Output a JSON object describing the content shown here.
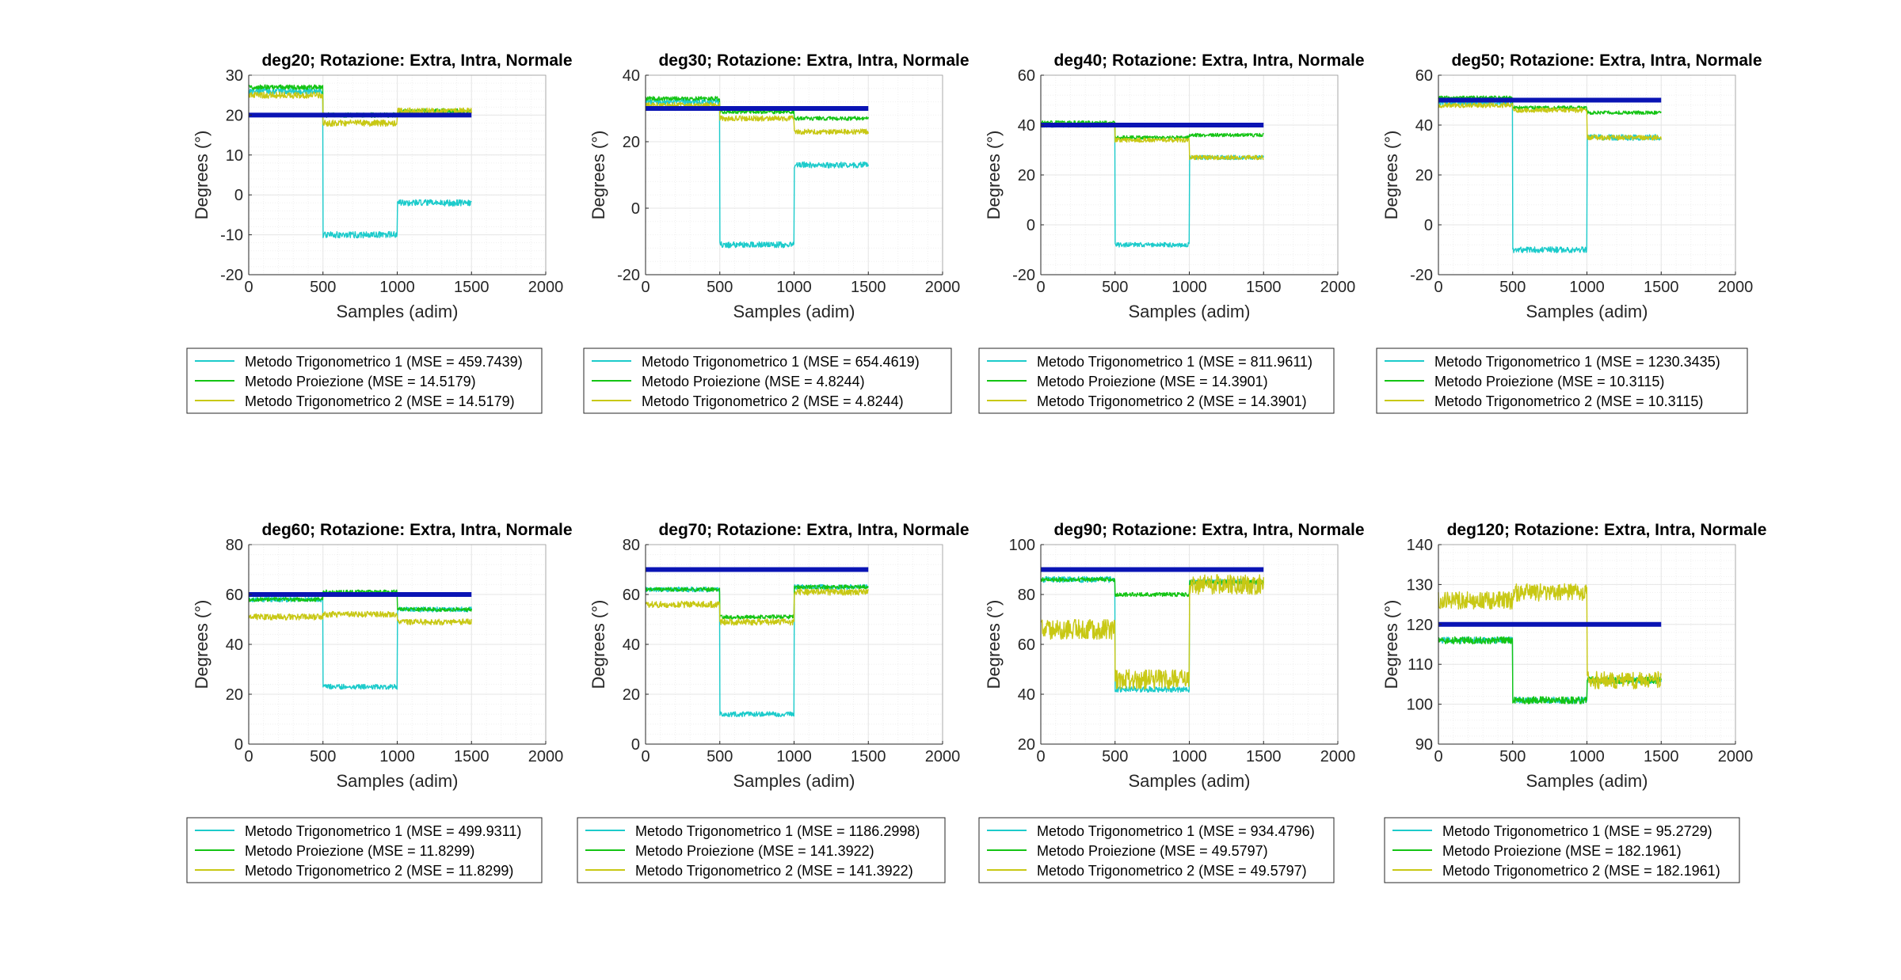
{
  "figure": {
    "xlabel": "Samples (adim)",
    "ylabel": "Degrees (°)",
    "colors": {
      "reference": "#0a14b4",
      "trig1": "#1ccbcb",
      "proiezione": "#14c414",
      "trig2": "#c8c814",
      "grid": "#e6e6e6",
      "axis": "#262626"
    }
  },
  "chart_data": [
    {
      "type": "line",
      "title": "deg20; Rotazione: Extra, Intra, Normale",
      "xlabel": "Samples (adim)",
      "ylabel": "Degrees (°)",
      "xlim": [
        0,
        2000
      ],
      "ylim": [
        -20,
        30
      ],
      "xticks": [
        0,
        500,
        1000,
        1500,
        2000
      ],
      "yticks": [
        -20,
        -10,
        0,
        10,
        20,
        30
      ],
      "reference": 20,
      "series": [
        {
          "name": "Metodo Trigonometrico 1 (MSE = 459.7439)",
          "key": "trig1",
          "levels": [
            26,
            -10,
            -2
          ],
          "noise": 0.8
        },
        {
          "name": "Metodo Proiezione (MSE = 14.5179)",
          "key": "proiezione",
          "levels": [
            27,
            20,
            21
          ],
          "noise": 0.6
        },
        {
          "name": "Metodo Trigonometrico 2 (MSE = 14.5179)",
          "key": "trig2",
          "levels": [
            25,
            18,
            21
          ],
          "noise": 0.8
        }
      ],
      "legend_labels": [
        "Metodo Trigonometrico 1 (MSE = 459.7439)",
        "Metodo Proiezione (MSE = 14.5179)",
        "Metodo Trigonometrico 2 (MSE = 14.5179)"
      ]
    },
    {
      "type": "line",
      "title": "deg30; Rotazione: Extra, Intra, Normale",
      "xlabel": "Samples (adim)",
      "ylabel": "Degrees (°)",
      "xlim": [
        0,
        2000
      ],
      "ylim": [
        -20,
        40
      ],
      "xticks": [
        0,
        500,
        1000,
        1500,
        2000
      ],
      "yticks": [
        -20,
        0,
        20,
        40
      ],
      "reference": 30,
      "series": [
        {
          "name": "Metodo Trigonometrico 1 (MSE = 654.4619)",
          "key": "trig1",
          "levels": [
            32,
            -11,
            13
          ],
          "noise": 0.9
        },
        {
          "name": "Metodo Proiezione (MSE = 4.8244)",
          "key": "proiezione",
          "levels": [
            33,
            29,
            27
          ],
          "noise": 0.6
        },
        {
          "name": "Metodo Trigonometrico 2 (MSE = 4.8244)",
          "key": "trig2",
          "levels": [
            31,
            27,
            23
          ],
          "noise": 0.8
        }
      ],
      "legend_labels": [
        "Metodo Trigonometrico 1 (MSE = 654.4619)",
        "Metodo Proiezione (MSE = 4.8244)",
        "Metodo Trigonometrico 2 (MSE = 4.8244)"
      ]
    },
    {
      "type": "line",
      "title": "deg40; Rotazione: Extra, Intra, Normale",
      "xlabel": "Samples (adim)",
      "ylabel": "Degrees (°)",
      "xlim": [
        0,
        2000
      ],
      "ylim": [
        -20,
        60
      ],
      "xticks": [
        0,
        500,
        1000,
        1500,
        2000
      ],
      "yticks": [
        -20,
        0,
        20,
        40,
        60
      ],
      "reference": 40,
      "series": [
        {
          "name": "Metodo Trigonometrico 1 (MSE = 811.9611)",
          "key": "trig1",
          "levels": [
            40,
            -8,
            27
          ],
          "noise": 0.9
        },
        {
          "name": "Metodo Proiezione (MSE = 14.3901)",
          "key": "proiezione",
          "levels": [
            41,
            35,
            36
          ],
          "noise": 0.7
        },
        {
          "name": "Metodo Trigonometrico 2 (MSE = 14.3901)",
          "key": "trig2",
          "levels": [
            40,
            34,
            27
          ],
          "noise": 0.9
        }
      ],
      "legend_labels": [
        "Metodo Trigonometrico 1 (MSE = 811.9611)",
        "Metodo Proiezione (MSE = 14.3901)",
        "Metodo Trigonometrico 2 (MSE = 14.3901)"
      ]
    },
    {
      "type": "line",
      "title": "deg50; Rotazione: Extra, Intra, Normale",
      "xlabel": "Samples (adim)",
      "ylabel": "Degrees (°)",
      "xlim": [
        0,
        2000
      ],
      "ylim": [
        -20,
        60
      ],
      "xticks": [
        0,
        500,
        1000,
        1500,
        2000
      ],
      "yticks": [
        -20,
        0,
        20,
        40,
        60
      ],
      "reference": 50,
      "series": [
        {
          "name": "Metodo Trigonometrico 1 (MSE = 1230.3435)",
          "key": "trig1",
          "levels": [
            49,
            -10,
            35
          ],
          "noise": 1.2
        },
        {
          "name": "Metodo Proiezione (MSE = 10.3115)",
          "key": "proiezione",
          "levels": [
            51,
            47,
            45
          ],
          "noise": 0.7
        },
        {
          "name": "Metodo Trigonometrico 2 (MSE = 10.3115)",
          "key": "trig2",
          "levels": [
            48,
            46,
            35
          ],
          "noise": 1.0
        }
      ],
      "legend_labels": [
        "Metodo Trigonometrico 1 (MSE = 1230.3435)",
        "Metodo Proiezione (MSE = 10.3115)",
        "Metodo Trigonometrico 2 (MSE = 10.3115)"
      ]
    },
    {
      "type": "line",
      "title": "deg60; Rotazione: Extra, Intra, Normale",
      "xlabel": "Samples (adim)",
      "ylabel": "Degrees (°)",
      "xlim": [
        0,
        2000
      ],
      "ylim": [
        0,
        80
      ],
      "xticks": [
        0,
        500,
        1000,
        1500,
        2000
      ],
      "yticks": [
        0,
        20,
        40,
        60,
        80
      ],
      "reference": 60,
      "series": [
        {
          "name": "Metodo Trigonometrico 1 (MSE = 499.9311)",
          "key": "trig1",
          "levels": [
            58,
            23,
            54
          ],
          "noise": 1.0
        },
        {
          "name": "Metodo Proiezione (MSE = 11.8299)",
          "key": "proiezione",
          "levels": [
            58,
            61,
            54
          ],
          "noise": 0.8
        },
        {
          "name": "Metodo Trigonometrico 2 (MSE = 11.8299)",
          "key": "trig2",
          "levels": [
            51,
            52,
            49
          ],
          "noise": 1.2
        }
      ],
      "legend_labels": [
        "Metodo Trigonometrico 1 (MSE = 499.9311)",
        "Metodo Proiezione (MSE = 11.8299)",
        "Metodo Trigonometrico 2 (MSE = 11.8299)"
      ]
    },
    {
      "type": "line",
      "title": "deg70; Rotazione: Extra, Intra, Normale",
      "xlabel": "Samples (adim)",
      "ylabel": "Degrees (°)",
      "xlim": [
        0,
        2000
      ],
      "ylim": [
        0,
        80
      ],
      "xticks": [
        0,
        500,
        1000,
        1500,
        2000
      ],
      "yticks": [
        0,
        20,
        40,
        60,
        80
      ],
      "reference": 70,
      "series": [
        {
          "name": "Metodo Trigonometrico 1 (MSE = 1186.2998)",
          "key": "trig1",
          "levels": [
            62,
            12,
            63
          ],
          "noise": 1.0
        },
        {
          "name": "Metodo Proiezione (MSE = 141.3922)",
          "key": "proiezione",
          "levels": [
            62,
            51,
            63
          ],
          "noise": 0.8
        },
        {
          "name": "Metodo Trigonometrico 2 (MSE = 141.3922)",
          "key": "trig2",
          "levels": [
            56,
            49,
            61
          ],
          "noise": 1.3
        }
      ],
      "legend_labels": [
        "Metodo Trigonometrico 1 (MSE = 1186.2998)",
        "Metodo Proiezione (MSE = 141.3922)",
        "Metodo Trigonometrico 2 (MSE = 141.3922)"
      ]
    },
    {
      "type": "line",
      "title": "deg90; Rotazione: Extra, Intra, Normale",
      "xlabel": "Samples (adim)",
      "ylabel": "Degrees (°)",
      "xlim": [
        0,
        2000
      ],
      "ylim": [
        20,
        100
      ],
      "xticks": [
        0,
        500,
        1000,
        1500,
        2000
      ],
      "yticks": [
        20,
        40,
        60,
        80,
        100
      ],
      "reference": 90,
      "series": [
        {
          "name": "Metodo Trigonometrico 1 (MSE = 934.4796)",
          "key": "trig1",
          "levels": [
            86,
            42,
            85
          ],
          "noise": 1.2
        },
        {
          "name": "Metodo Proiezione (MSE = 49.5797)",
          "key": "proiezione",
          "levels": [
            86,
            80,
            85
          ],
          "noise": 0.8
        },
        {
          "name": "Metodo Trigonometrico 2 (MSE = 49.5797)",
          "key": "trig2",
          "levels": [
            66,
            46,
            84
          ],
          "noise": 4.0
        }
      ],
      "legend_labels": [
        "Metodo Trigonometrico 1 (MSE = 934.4796)",
        "Metodo Proiezione (MSE = 49.5797)",
        "Metodo Trigonometrico 2 (MSE = 49.5797)"
      ]
    },
    {
      "type": "line",
      "title": "deg120; Rotazione: Extra, Intra, Normale",
      "xlabel": "Samples (adim)",
      "ylabel": "Degrees (°)",
      "xlim": [
        0,
        2000
      ],
      "ylim": [
        90,
        140
      ],
      "xticks": [
        0,
        500,
        1000,
        1500,
        2000
      ],
      "yticks": [
        90,
        100,
        110,
        120,
        130,
        140
      ],
      "reference": 120,
      "series": [
        {
          "name": "Metodo Trigonometrico 1 (MSE = 95.2729)",
          "key": "trig1",
          "levels": [
            116,
            101,
            106
          ],
          "noise": 0.8
        },
        {
          "name": "Metodo Proiezione (MSE = 182.1961)",
          "key": "proiezione",
          "levels": [
            116,
            101,
            106
          ],
          "noise": 0.9
        },
        {
          "name": "Metodo Trigonometrico 2 (MSE = 182.1961)",
          "key": "trig2",
          "levels": [
            126,
            128,
            106
          ],
          "noise": 2.2
        }
      ],
      "legend_labels": [
        "Metodo Trigonometrico 1 (MSE = 95.2729)",
        "Metodo Proiezione (MSE = 182.1961)",
        "Metodo Trigonometrico 2 (MSE = 182.1961)"
      ]
    }
  ]
}
